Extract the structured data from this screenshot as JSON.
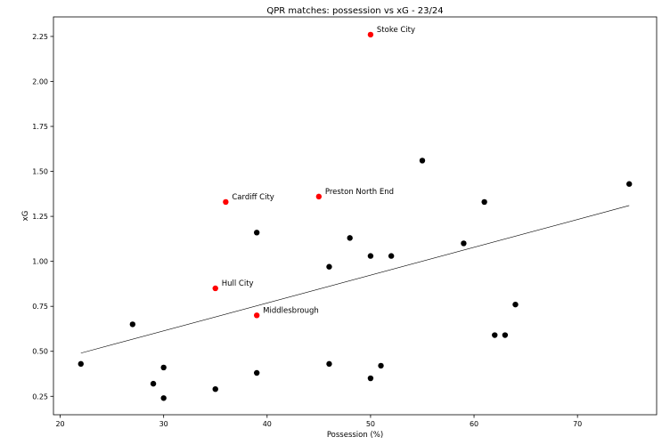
{
  "chart_data": {
    "type": "scatter",
    "title": "QPR matches: possession vs xG - 23/24",
    "xlabel": "Possession (%)",
    "ylabel": "xG",
    "xlim": [
      19.35,
      77.65
    ],
    "ylim": [
      0.1475,
      2.3585
    ],
    "xticks": [
      20,
      30,
      40,
      50,
      60,
      70
    ],
    "yticks": [
      0.25,
      0.5,
      0.75,
      1.0,
      1.25,
      1.5,
      1.75,
      2.0,
      2.25
    ],
    "grid": false,
    "colors": {
      "point": "#000000",
      "highlight": "#ff0000",
      "trend": "#000000"
    },
    "points": [
      {
        "x": 22,
        "y": 0.43
      },
      {
        "x": 27,
        "y": 0.65
      },
      {
        "x": 29,
        "y": 0.32
      },
      {
        "x": 30,
        "y": 0.41
      },
      {
        "x": 30,
        "y": 0.24
      },
      {
        "x": 35,
        "y": 0.29
      },
      {
        "x": 39,
        "y": 1.16
      },
      {
        "x": 39,
        "y": 0.38
      },
      {
        "x": 46,
        "y": 0.97
      },
      {
        "x": 46,
        "y": 0.43
      },
      {
        "x": 48,
        "y": 1.13
      },
      {
        "x": 50,
        "y": 1.03
      },
      {
        "x": 50,
        "y": 0.35
      },
      {
        "x": 51,
        "y": 0.42
      },
      {
        "x": 52,
        "y": 1.03
      },
      {
        "x": 55,
        "y": 1.56
      },
      {
        "x": 59,
        "y": 1.1
      },
      {
        "x": 61,
        "y": 1.33
      },
      {
        "x": 62,
        "y": 0.59
      },
      {
        "x": 63,
        "y": 0.59
      },
      {
        "x": 64,
        "y": 0.76
      },
      {
        "x": 75,
        "y": 1.43
      },
      {
        "x": 50,
        "y": 2.26,
        "label": "Stoke City",
        "highlight": true
      },
      {
        "x": 45,
        "y": 1.36,
        "label": "Preston North End",
        "highlight": true
      },
      {
        "x": 36,
        "y": 1.33,
        "label": "Cardiff City",
        "highlight": true
      },
      {
        "x": 35,
        "y": 0.85,
        "label": "Hull City",
        "highlight": true
      },
      {
        "x": 39,
        "y": 0.7,
        "label": "Middlesbrough",
        "highlight": true
      }
    ],
    "trendline": {
      "x": [
        22,
        75
      ],
      "y": [
        0.49,
        1.31
      ]
    }
  }
}
